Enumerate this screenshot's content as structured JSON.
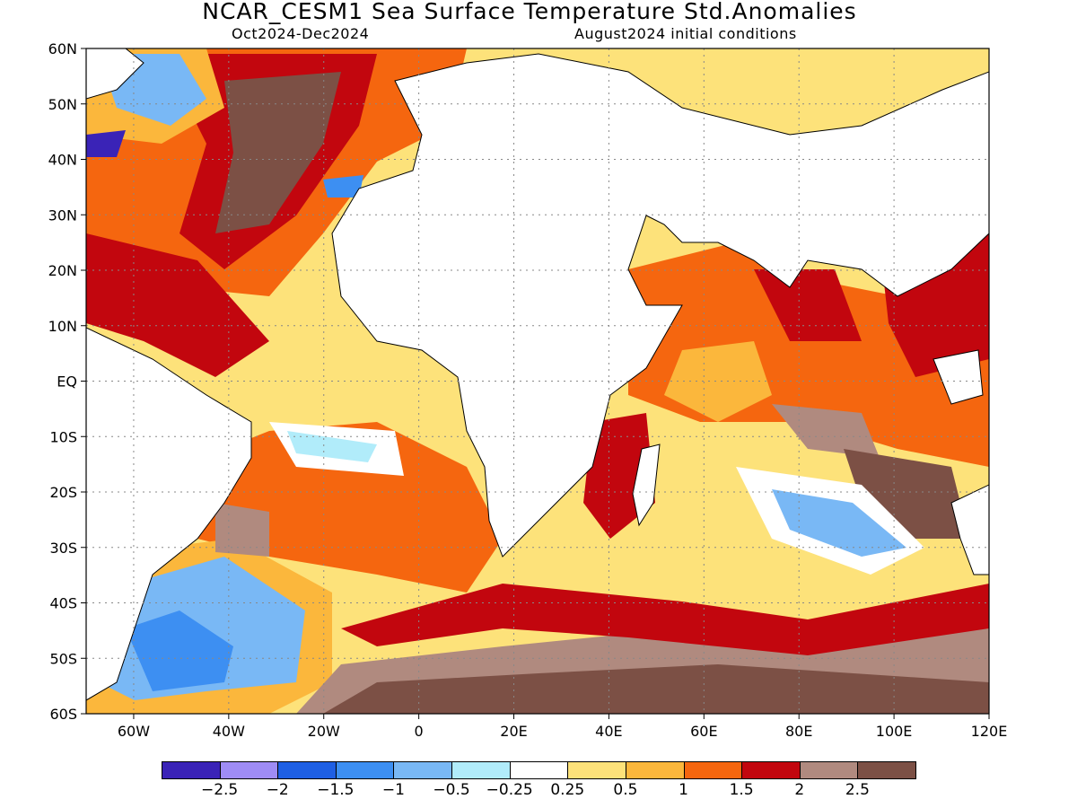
{
  "title": "NCAR_CESM1 Sea Surface Temperature Std.Anomalies",
  "subtitle_left": "Oct2024-Dec2024",
  "subtitle_right": "August2024 initial conditions",
  "axes": {
    "y_ticks": [
      "60N",
      "50N",
      "40N",
      "30N",
      "20N",
      "10N",
      "EQ",
      "10S",
      "20S",
      "30S",
      "40S",
      "50S",
      "60S"
    ],
    "x_ticks": [
      "60W",
      "40W",
      "20W",
      "0",
      "20E",
      "40E",
      "60E",
      "80E",
      "100E",
      "120E"
    ],
    "lat_range": [
      -60,
      60
    ],
    "lon_range": [
      -70,
      120
    ],
    "grid": "dotted"
  },
  "colorbar": {
    "colors": [
      "#3a23b7",
      "#9f8cf5",
      "#1f5fe3",
      "#3d8ff2",
      "#79b8f5",
      "#b1ecfa",
      "#ffffff",
      "#fde27a",
      "#fbb73c",
      "#f5660f",
      "#c2060e",
      "#b08a7f",
      "#7c5045"
    ],
    "labels": [
      "-2.5",
      "-2",
      "-1.5",
      "-1",
      "-0.5",
      "-0.25",
      "0.25",
      "0.5",
      "1",
      "1.5",
      "2",
      "2.5"
    ]
  },
  "legend_placement": "bottom"
}
